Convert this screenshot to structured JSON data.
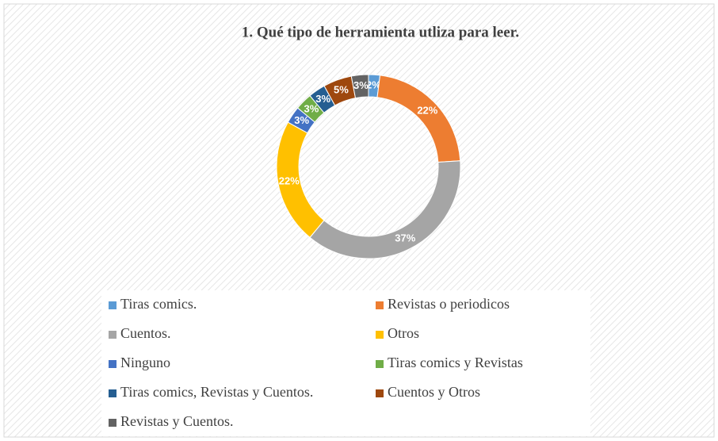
{
  "chart_data": {
    "type": "doughnut",
    "title": "1. Qué tipo de herramienta utliza para leer.",
    "categories": [
      "Tiras comics.",
      "Revistas o periodicos",
      "Cuentos.",
      "Otros",
      "Ninguno",
      "Tiras comics y Revistas",
      "Tiras comics, Revistas y Cuentos.",
      "Cuentos y Otros",
      "Revistas y Cuentos."
    ],
    "values": [
      2,
      22,
      37,
      22,
      3,
      3,
      3,
      5,
      3
    ],
    "value_labels": [
      "2%",
      "22%",
      "37%",
      "22%",
      "3%",
      "3%",
      "3%",
      "5%",
      "3%"
    ],
    "colors": [
      "#5b9bd5",
      "#ed7d31",
      "#a5a5a5",
      "#ffc000",
      "#4472c4",
      "#70ad47",
      "#255e91",
      "#9e480e",
      "#636363"
    ],
    "legend": "bottom"
  }
}
